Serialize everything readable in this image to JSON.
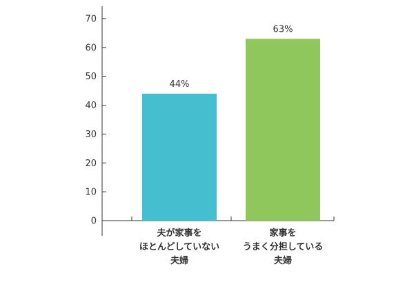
{
  "chart_data": {
    "type": "bar",
    "categories": [
      [
        "夫が家事を",
        "ほとんどしていない",
        "夫婦"
      ],
      [
        "家事を",
        "うまく分担している",
        "夫婦"
      ]
    ],
    "values": [
      44,
      63
    ],
    "value_labels": [
      "44%",
      "63%"
    ],
    "colors": [
      "#45bfcf",
      "#8fc75c"
    ],
    "ylim": [
      0,
      70
    ],
    "yticks": [
      0,
      10,
      20,
      30,
      40,
      50,
      60,
      70
    ],
    "title": "",
    "xlabel": "",
    "ylabel": "",
    "grid": false,
    "legend": "none"
  }
}
